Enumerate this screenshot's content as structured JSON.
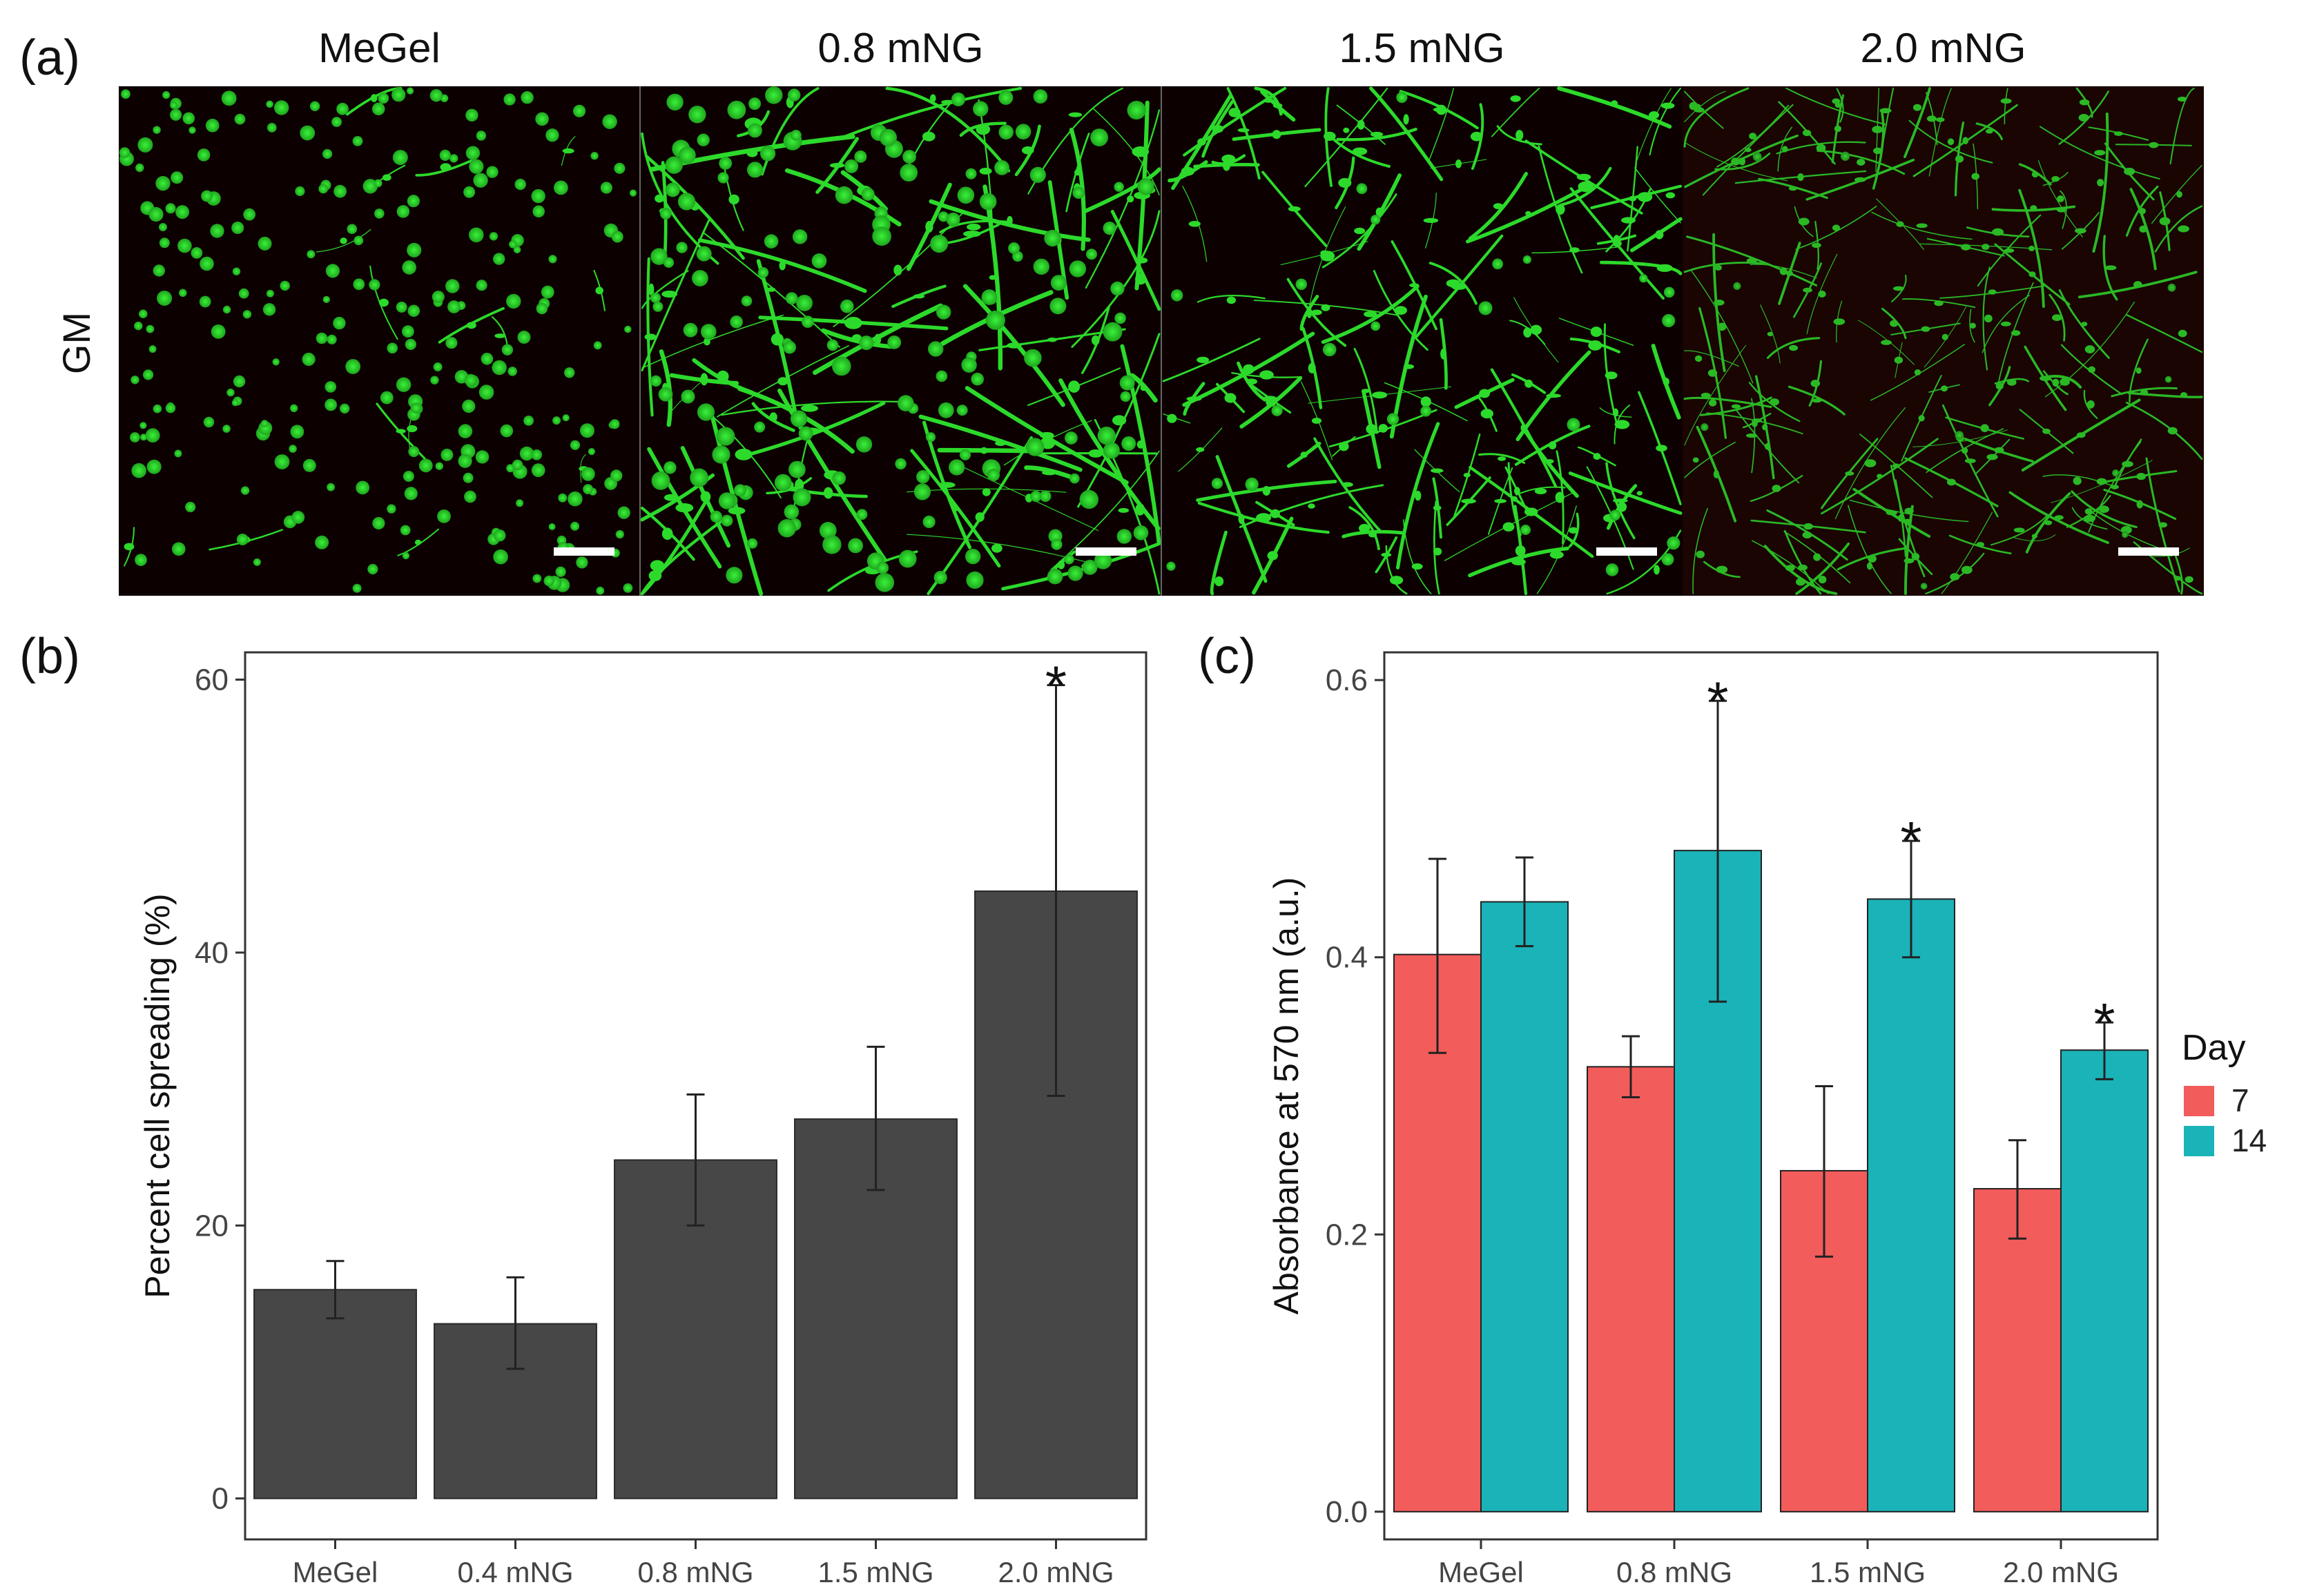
{
  "panel_a": {
    "letter": "(a)",
    "row_label": "GM",
    "columns": [
      "MeGel",
      "0.8 mNG",
      "1.5 mNG",
      "2.0 mNG"
    ],
    "colors": {
      "background": "#0d0000",
      "cell": "#2ee62e",
      "scale_bar": "#ffffff"
    }
  },
  "chart_data": [
    {
      "panel": "(b)",
      "type": "bar",
      "title": "",
      "xlabel": "",
      "ylabel": "Percent cell spreading (%)",
      "categories": [
        "MeGel",
        "0.4 mNG",
        "0.8 mNG",
        "1.5 mNG",
        "2.0 mNG"
      ],
      "values": [
        15.3,
        12.8,
        24.8,
        27.8,
        44.5
      ],
      "error_low": [
        13.2,
        9.5,
        20.0,
        22.6,
        29.5
      ],
      "error_high": [
        17.4,
        16.2,
        29.6,
        33.1,
        59.6
      ],
      "ylim": [
        -3,
        62
      ],
      "yticks": [
        0,
        20,
        40,
        60
      ],
      "annotations": [
        {
          "category": "2.0 mNG",
          "text": "*"
        }
      ],
      "bar_color": "#474747",
      "grid": false
    },
    {
      "panel": "(c)",
      "type": "bar",
      "title": "",
      "xlabel": "",
      "ylabel": "Absorbance at 570 nm (a.u.)",
      "categories": [
        "MeGel",
        "0.8 mNG",
        "1.5 mNG",
        "2.0 mNG"
      ],
      "legend": {
        "title": "Day",
        "position": "right"
      },
      "series": [
        {
          "name": "7",
          "color": "#f25c5a",
          "values": [
            0.402,
            0.321,
            0.246,
            0.233
          ],
          "error_low": [
            0.331,
            0.299,
            0.184,
            0.197
          ],
          "error_high": [
            0.471,
            0.343,
            0.307,
            0.268
          ]
        },
        {
          "name": "14",
          "color": "#1ab3b8",
          "values": [
            0.44,
            0.477,
            0.442,
            0.333
          ],
          "error_low": [
            0.408,
            0.368,
            0.4,
            0.312
          ],
          "error_high": [
            0.472,
            0.585,
            0.484,
            0.353
          ]
        }
      ],
      "ylim": [
        -0.02,
        0.62
      ],
      "yticks": [
        0.0,
        0.2,
        0.4,
        0.6
      ],
      "ytick_labels": [
        "0.0",
        "0.2",
        "0.4",
        "0.6"
      ],
      "annotations": [
        {
          "category": "0.8 mNG",
          "series": "14",
          "text": "*"
        },
        {
          "category": "1.5 mNG",
          "series": "14",
          "text": "*"
        },
        {
          "category": "2.0 mNG",
          "series": "14",
          "text": "*"
        }
      ],
      "grid": false
    }
  ]
}
